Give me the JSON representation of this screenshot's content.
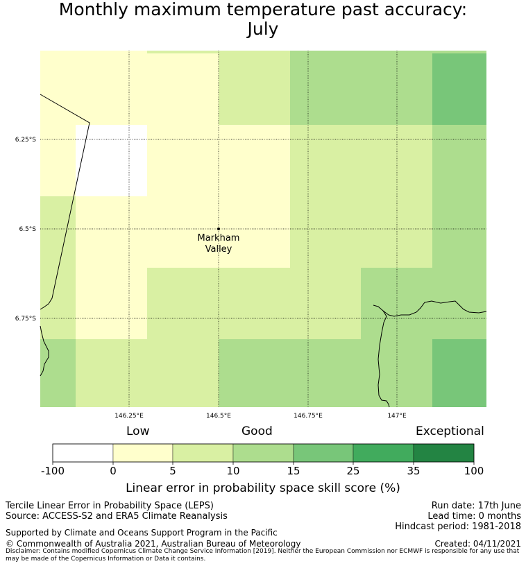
{
  "title_line1": "Monthly maximum temperature past accuracy:",
  "title_line2": "July",
  "map": {
    "lat_labels": [
      "6.25°S",
      "6.5°S",
      "6.75°S"
    ],
    "lon_labels": [
      "146.25°E",
      "146.5°E",
      "146.75°E",
      "147°E"
    ],
    "place_name_line1": "Markham",
    "place_name_line2": "Valley",
    "colors": {
      "c0": "#ffffff",
      "c1": "#ffffcc",
      "c2": "#d9f0a3",
      "c3": "#addd8e",
      "c4": "#78c679",
      "c5": "#41ab5d",
      "c6": "#238443"
    }
  },
  "categories": {
    "low": "Low",
    "good": "Good",
    "exceptional": "Exceptional"
  },
  "colorbar": {
    "ticks": [
      "-100",
      "0",
      "5",
      "10",
      "15",
      "25",
      "35",
      "100"
    ],
    "title": "Linear error in probability space skill score (%)"
  },
  "footer": {
    "method": "Tercile Linear Error in Probability Space (LEPS)",
    "source": "Source: ACCESS-S2 and ERA5 Climate Reanalysis",
    "run_date": "Run date: 17th June",
    "lead_time": "Lead time: 0 months",
    "hindcast": "Hindcast period: 1981-2018",
    "supported": "Supported by Climate and Oceans Support Program in the Pacific",
    "copyright": "© Commonwealth of Australia 2021, Australian Bureau of Meteorology",
    "created": "Created: 04/11/2021",
    "disclaimer": "Disclaimer: Contains modified Copernicus Climate Change Service Information [2019]. Neither the European Commission nor ECMWF is responsible for any use that may be made of the Copernicus Information or Data it contains."
  }
}
